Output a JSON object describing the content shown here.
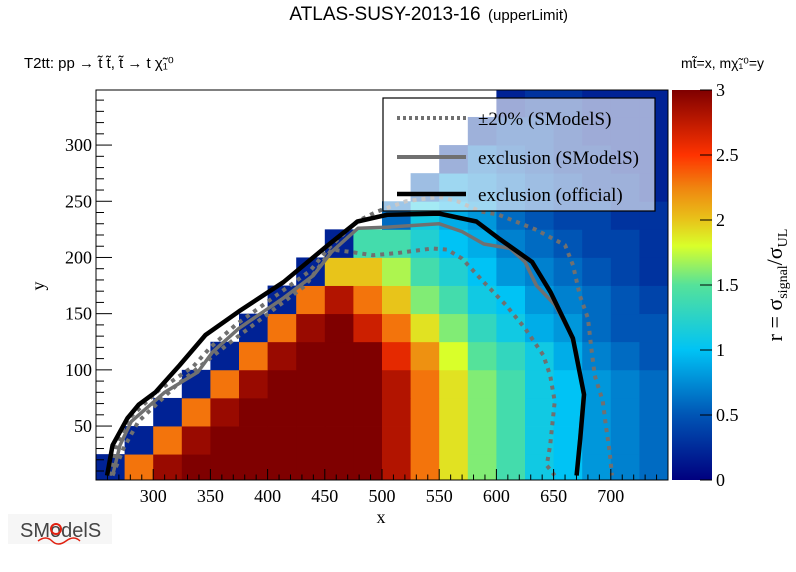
{
  "title": {
    "main": "ATLAS-SUSY-2013-16",
    "sub": "(upperLimit)"
  },
  "process_label": "T2tt: pp → t̃ t̃, t̃ → t χ̃₁⁰",
  "mass_label": "mt̃=x, mχ̃₁⁰=y",
  "logo": {
    "text": "SModelS"
  },
  "chart_data": {
    "type": "heatmap",
    "title": "ATLAS-SUSY-2013-16 (upperLimit)",
    "xlabel": "x",
    "ylabel": "y",
    "xlim": [
      250,
      750
    ],
    "ylim": [
      2,
      349
    ],
    "xticks": [
      "300",
      "350",
      "400",
      "450",
      "500",
      "550",
      "600",
      "650",
      "700"
    ],
    "yticks": [
      "50",
      "100",
      "150",
      "200",
      "250",
      "300"
    ],
    "colorbar": {
      "label_parts": [
        "r = σ",
        "signal",
        "/σ",
        "UL"
      ],
      "range": [
        0,
        3
      ],
      "ticks": [
        "0",
        "0.5",
        "1",
        "1.5",
        "2",
        "2.5",
        "3"
      ],
      "palette": [
        {
          "v": 0.0,
          "c": "#00007f"
        },
        {
          "v": 0.5,
          "c": "#0055b5"
        },
        {
          "v": 1.0,
          "c": "#00c3f5"
        },
        {
          "v": 1.5,
          "c": "#55e29a"
        },
        {
          "v": 1.8,
          "c": "#d9ff2a"
        },
        {
          "v": 2.0,
          "c": "#e8c41a"
        },
        {
          "v": 2.25,
          "c": "#f0840f"
        },
        {
          "v": 2.5,
          "c": "#ff3300"
        },
        {
          "v": 3.0,
          "c": "#7f0000"
        }
      ]
    },
    "grid_x": [
      262.5,
      287.5,
      312.5,
      337.5,
      362.5,
      387.5,
      412.5,
      437.5,
      462.5,
      487.5,
      512.5,
      537.5,
      562.5,
      587.5,
      612.5,
      637.5,
      662.5,
      687.5,
      712.5,
      737.5
    ],
    "grid_y": [
      12.5,
      37.5,
      62.5,
      87.5,
      112.5,
      137.5,
      162.5,
      187.5,
      212.5,
      237.5,
      262.5,
      287.5,
      312.5,
      337.5
    ],
    "cell_size": [
      25,
      25
    ],
    "z": [
      [
        0.2,
        2.3,
        2.9,
        3,
        3,
        3,
        3,
        3,
        3,
        3,
        2.8,
        2.3,
        1.9,
        1.6,
        1.4,
        1.1,
        1.0,
        0.8,
        0.7,
        0.6
      ],
      [
        null,
        0.2,
        2.3,
        2.9,
        3,
        3,
        3,
        3,
        3,
        3,
        2.8,
        2.3,
        1.9,
        1.6,
        1.4,
        1.1,
        1.0,
        0.8,
        0.7,
        0.6
      ],
      [
        null,
        null,
        0.2,
        2.3,
        2.9,
        3,
        3,
        3,
        3,
        3,
        2.8,
        2.3,
        1.9,
        1.6,
        1.4,
        1.1,
        1.0,
        0.8,
        0.7,
        0.6
      ],
      [
        null,
        null,
        null,
        0.2,
        2.3,
        2.9,
        3,
        3,
        3,
        3,
        2.8,
        2.3,
        1.9,
        1.6,
        1.4,
        1.1,
        1.0,
        0.8,
        0.7,
        0.6
      ],
      [
        null,
        null,
        null,
        null,
        0.2,
        2.3,
        2.9,
        3,
        3,
        3,
        2.6,
        2.2,
        1.8,
        1.5,
        1.3,
        1.1,
        0.9,
        0.7,
        0.6,
        0.5
      ],
      [
        null,
        null,
        null,
        null,
        null,
        0.2,
        2.3,
        2.9,
        3,
        2.7,
        2.3,
        1.9,
        1.6,
        1.3,
        1.1,
        0.9,
        0.8,
        0.6,
        0.5,
        0.5
      ],
      [
        null,
        null,
        null,
        null,
        null,
        null,
        0.2,
        2.3,
        2.8,
        2.3,
        2.0,
        1.6,
        1.4,
        1.1,
        1.0,
        0.8,
        0.7,
        0.6,
        0.5,
        0.4
      ],
      [
        null,
        null,
        null,
        null,
        null,
        null,
        null,
        0.2,
        2.0,
        2.0,
        1.7,
        1.4,
        1.2,
        1.0,
        0.8,
        0.7,
        0.6,
        0.5,
        0.4,
        0.3
      ],
      [
        null,
        null,
        null,
        null,
        null,
        null,
        null,
        null,
        0.2,
        1.4,
        1.4,
        1.2,
        1.0,
        0.9,
        0.7,
        0.6,
        0.5,
        0.4,
        0.4,
        0.3
      ],
      [
        null,
        null,
        null,
        null,
        null,
        null,
        null,
        null,
        null,
        null,
        0.6,
        1.1,
        0.9,
        0.8,
        0.6,
        0.5,
        0.4,
        0.4,
        0.3,
        0.3
      ],
      [
        null,
        null,
        null,
        null,
        null,
        null,
        null,
        null,
        null,
        null,
        null,
        0.5,
        0.8,
        0.7,
        0.6,
        0.5,
        0.4,
        0.3,
        0.3,
        0.2
      ],
      [
        null,
        null,
        null,
        null,
        null,
        null,
        null,
        null,
        null,
        null,
        null,
        null,
        0.3,
        0.6,
        0.5,
        0.4,
        0.3,
        0.3,
        0.2,
        0.2
      ],
      [
        null,
        null,
        null,
        null,
        null,
        null,
        null,
        null,
        null,
        null,
        null,
        null,
        null,
        0.3,
        0.4,
        0.4,
        0.3,
        0.2,
        0.2,
        0.2
      ],
      [
        null,
        null,
        null,
        null,
        null,
        null,
        null,
        null,
        null,
        null,
        null,
        null,
        null,
        null,
        0.2,
        0.3,
        0.3,
        0.2,
        0.2,
        0.2
      ]
    ],
    "contours": [
      {
        "name": "±20% (SModelS)",
        "style": "dotted",
        "color": "#707070",
        "paths": [
          [
            [
              262,
              6
            ],
            [
              268,
              33
            ],
            [
              278,
              56
            ],
            [
              305,
              82
            ],
            [
              335,
              103
            ],
            [
              350,
              120
            ],
            [
              372,
              140
            ],
            [
              410,
              168
            ],
            [
              437,
              188
            ],
            [
              455,
              210
            ],
            [
              478,
              232
            ],
            [
              496,
              241
            ],
            [
              521,
              250
            ],
            [
              550,
              254
            ],
            [
              566,
              250
            ],
            [
              586,
              241
            ],
            [
              602,
              238
            ],
            [
              634,
              225
            ],
            [
              660,
              211
            ],
            [
              667,
              193
            ],
            [
              673,
              166
            ],
            [
              680,
              146
            ],
            [
              683,
              119
            ],
            [
              686,
              95
            ],
            [
              693,
              72
            ],
            [
              696,
              48
            ],
            [
              699,
              27
            ],
            [
              701,
              6
            ]
          ],
          [
            [
              264.5,
              6
            ],
            [
              274,
              30
            ],
            [
              287,
              54
            ],
            [
              320,
              86
            ],
            [
              342,
              104
            ],
            [
              368,
              125
            ],
            [
              407,
              155
            ],
            [
              433,
              175
            ],
            [
              446,
              193
            ],
            [
              456,
              207
            ],
            [
              472,
              205
            ],
            [
              492,
              202
            ],
            [
              514,
              204
            ],
            [
              544,
              208
            ],
            [
              557,
              207
            ],
            [
              570,
              199
            ],
            [
              589,
              178
            ],
            [
              608,
              158
            ],
            [
              625,
              137
            ],
            [
              641,
              113
            ],
            [
              647,
              95
            ],
            [
              651,
              72
            ],
            [
              647,
              33
            ],
            [
              644,
              15
            ],
            [
              651,
              6
            ]
          ]
        ]
      },
      {
        "name": "exclusion (SModelS)",
        "style": "solid",
        "color": "#707070",
        "paths": [
          [
            [
              264.5,
              6
            ],
            [
              271,
              33
            ],
            [
              280.8,
              54
            ],
            [
              310,
              80
            ],
            [
              339,
              98
            ],
            [
              352,
              116
            ],
            [
              375,
              137
            ],
            [
              414,
              164
            ],
            [
              440,
              184
            ],
            [
              456,
              205
            ],
            [
              479,
              226
            ],
            [
              505,
              227
            ],
            [
              550,
              230
            ],
            [
              570,
              223
            ],
            [
              589,
              212
            ],
            [
              612,
              208
            ],
            [
              625,
              196
            ],
            [
              635,
              175
            ],
            [
              651,
              158
            ],
            [
              664,
              134
            ],
            [
              670,
              116
            ],
            [
              676,
              78
            ],
            [
              673,
              40
            ],
            [
              670,
              6
            ]
          ]
        ]
      },
      {
        "name": "exclusion (official)",
        "style": "thick",
        "color": "#000000",
        "paths": [
          [
            [
              259.7,
              6
            ],
            [
              264.5,
              33
            ],
            [
              277.5,
              57
            ],
            [
              287.3,
              69
            ],
            [
              301.9,
              80
            ],
            [
              323,
              104
            ],
            [
              345.7,
              131
            ],
            [
              374.9,
              152
            ],
            [
              413.8,
              178
            ],
            [
              452.8,
              211
            ],
            [
              478.6,
              232
            ],
            [
              504.6,
              238
            ],
            [
              550.1,
              239
            ],
            [
              582.5,
              232
            ],
            [
              602,
              217
            ],
            [
              631.2,
              196
            ],
            [
              647.4,
              169
            ],
            [
              666.9,
              128
            ],
            [
              676.6,
              78
            ],
            [
              673.3,
              39
            ],
            [
              670.1,
              6
            ]
          ]
        ]
      }
    ],
    "legend": {
      "placement": "top-right",
      "entries": [
        {
          "label": "±20% (SModelS)",
          "style": "dotted"
        },
        {
          "label": "exclusion (SModelS)",
          "style": "solid"
        },
        {
          "label": "exclusion (official)",
          "style": "thick"
        }
      ]
    }
  }
}
